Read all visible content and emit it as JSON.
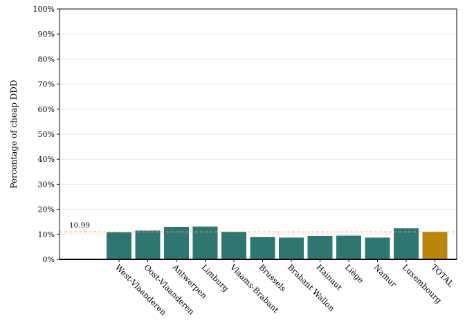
{
  "chart_data": {
    "type": "bar",
    "title": "",
    "xlabel": "",
    "ylabel": "Percentage of cheap DDD",
    "ylim": [
      0,
      100
    ],
    "yticks": [
      "0%",
      "10%",
      "20%",
      "30%",
      "40%",
      "50%",
      "60%",
      "70%",
      "80%",
      "90%",
      "100%"
    ],
    "categories": [
      "West-Vlaanderen",
      "Oost-Vlaanderen",
      "Antwerpen",
      "Limburg",
      "Vlaams-Brabant",
      "Brussels",
      "Brabant Wallon",
      "Hainaut",
      "Liège",
      "Namur",
      "Luxembourg",
      "TOTAL"
    ],
    "values": [
      10.8,
      11.5,
      13.0,
      13.1,
      11.0,
      8.9,
      8.7,
      9.4,
      9.5,
      8.7,
      12.4,
      10.99
    ],
    "reference_line": {
      "value": 10.99,
      "label": "10.99"
    },
    "grid": true,
    "legend": "none",
    "colors": {
      "bar": "#2f7672",
      "total": "#b8860b",
      "reference": "#f0a05a",
      "grid": "#e6e6e6"
    }
  }
}
